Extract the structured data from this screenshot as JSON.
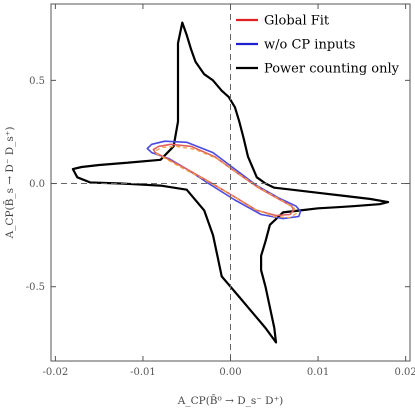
{
  "chart_data": {
    "type": "line",
    "title": "",
    "xlabel": "A_CP(B̄⁰ → D_s⁻ D⁺)",
    "ylabel": "A_CP(B̄_s → D⁻ D_s⁺)",
    "xlim": [
      -0.0205,
      0.0205
    ],
    "ylim": [
      -0.86,
      0.87
    ],
    "xticks": [
      -0.02,
      -0.01,
      0.0,
      0.01,
      0.02
    ],
    "xtick_labels": [
      "-0.02",
      "-0.01",
      "0.00",
      "0.01",
      "0.02"
    ],
    "yticks": [
      -0.5,
      0.0,
      0.5
    ],
    "ytick_labels": [
      "-0.5",
      "0.0",
      "0.5"
    ],
    "grid": false,
    "reference_lines": {
      "x": 0.0,
      "y": 0.0,
      "style": "dashed"
    },
    "legend": {
      "placement": "top-right",
      "entries": [
        {
          "label": "Global Fit",
          "color": "#e02020"
        },
        {
          "label": "w/o CP inputs",
          "color": "#2020d0"
        },
        {
          "label": "Power counting only",
          "color": "#000000"
        }
      ]
    },
    "series": [
      {
        "name": "Power counting only",
        "color": "#000000",
        "kind": "closed-contour",
        "points": [
          [
            -0.0055,
            0.78
          ],
          [
            -0.005,
            0.72
          ],
          [
            -0.0045,
            0.65
          ],
          [
            -0.004,
            0.59
          ],
          [
            -0.003,
            0.53
          ],
          [
            -0.002,
            0.5
          ],
          [
            -0.001,
            0.45
          ],
          [
            -0.0002,
            0.42
          ],
          [
            0.0005,
            0.37
          ],
          [
            0.001,
            0.3
          ],
          [
            0.0015,
            0.22
          ],
          [
            0.002,
            0.13
          ],
          [
            0.003,
            0.03
          ],
          [
            0.004,
            0.0
          ],
          [
            0.005,
            -0.02
          ],
          [
            0.007,
            -0.03
          ],
          [
            0.01,
            -0.045
          ],
          [
            0.013,
            -0.06
          ],
          [
            0.016,
            -0.075
          ],
          [
            0.018,
            -0.09
          ],
          [
            0.017,
            -0.1
          ],
          [
            0.014,
            -0.11
          ],
          [
            0.012,
            -0.115
          ],
          [
            0.01,
            -0.12
          ],
          [
            0.008,
            -0.13
          ],
          [
            0.006,
            -0.14
          ],
          [
            0.0045,
            -0.2
          ],
          [
            0.004,
            -0.28
          ],
          [
            0.0035,
            -0.35
          ],
          [
            0.0035,
            -0.42
          ],
          [
            0.004,
            -0.5
          ],
          [
            0.0045,
            -0.6
          ],
          [
            0.005,
            -0.7
          ],
          [
            0.0052,
            -0.77
          ],
          [
            0.004,
            -0.7
          ],
          [
            0.003,
            -0.65
          ],
          [
            0.002,
            -0.6
          ],
          [
            0.001,
            -0.55
          ],
          [
            0.0,
            -0.5
          ],
          [
            -0.001,
            -0.45
          ],
          [
            -0.0015,
            -0.35
          ],
          [
            -0.002,
            -0.25
          ],
          [
            -0.003,
            -0.13
          ],
          [
            -0.005,
            -0.03
          ],
          [
            -0.008,
            -0.01
          ],
          [
            -0.0125,
            0.0
          ],
          [
            -0.016,
            0.005
          ],
          [
            -0.0175,
            0.03
          ],
          [
            -0.018,
            0.07
          ],
          [
            -0.017,
            0.08
          ],
          [
            -0.015,
            0.09
          ],
          [
            -0.012,
            0.1
          ],
          [
            -0.008,
            0.115
          ],
          [
            -0.0065,
            0.18
          ],
          [
            -0.006,
            0.3
          ],
          [
            -0.006,
            0.42
          ],
          [
            -0.006,
            0.55
          ],
          [
            -0.006,
            0.68
          ],
          [
            -0.0055,
            0.78
          ]
        ]
      },
      {
        "name": "w/o CP inputs",
        "color": "#4a4ae0",
        "kind": "closed-contour",
        "points": [
          [
            -0.0095,
            0.17
          ],
          [
            -0.009,
            0.19
          ],
          [
            -0.0075,
            0.205
          ],
          [
            -0.005,
            0.2
          ],
          [
            -0.002,
            0.15
          ],
          [
            0.0005,
            0.07
          ],
          [
            0.003,
            -0.01
          ],
          [
            0.0055,
            -0.07
          ],
          [
            0.0075,
            -0.11
          ],
          [
            0.008,
            -0.135
          ],
          [
            0.0078,
            -0.16
          ],
          [
            0.006,
            -0.17
          ],
          [
            0.0035,
            -0.15
          ],
          [
            0.0005,
            -0.08
          ],
          [
            -0.0025,
            0.0
          ],
          [
            -0.005,
            0.07
          ],
          [
            -0.007,
            0.12
          ],
          [
            -0.009,
            0.15
          ],
          [
            -0.0095,
            0.17
          ]
        ]
      },
      {
        "name": "Global Fit",
        "color": "#e06060",
        "kind": "closed-contour",
        "points": [
          [
            -0.0088,
            0.165
          ],
          [
            -0.0082,
            0.18
          ],
          [
            -0.0068,
            0.19
          ],
          [
            -0.0045,
            0.18
          ],
          [
            -0.0018,
            0.13
          ],
          [
            0.0008,
            0.05
          ],
          [
            0.0032,
            -0.02
          ],
          [
            0.0055,
            -0.075
          ],
          [
            0.007,
            -0.11
          ],
          [
            0.0072,
            -0.13
          ],
          [
            0.0068,
            -0.15
          ],
          [
            0.0052,
            -0.155
          ],
          [
            0.003,
            -0.13
          ],
          [
            0.0003,
            -0.06
          ],
          [
            -0.0025,
            0.01
          ],
          [
            -0.005,
            0.07
          ],
          [
            -0.0072,
            0.12
          ],
          [
            -0.0086,
            0.15
          ],
          [
            -0.0088,
            0.165
          ]
        ]
      },
      {
        "name": "",
        "color": "#f0a040",
        "kind": "closed-contour-dashed",
        "points": [
          [
            -0.0085,
            0.16
          ],
          [
            -0.0078,
            0.175
          ],
          [
            -0.0062,
            0.18
          ],
          [
            -0.004,
            0.165
          ],
          [
            -0.0015,
            0.12
          ],
          [
            0.001,
            0.045
          ],
          [
            0.0035,
            -0.025
          ],
          [
            0.0058,
            -0.08
          ],
          [
            0.0073,
            -0.12
          ],
          [
            0.0075,
            -0.145
          ],
          [
            0.0068,
            -0.165
          ],
          [
            0.005,
            -0.16
          ],
          [
            0.0025,
            -0.12
          ],
          [
            -0.0003,
            -0.045
          ],
          [
            -0.003,
            0.02
          ],
          [
            -0.0055,
            0.075
          ],
          [
            -0.0074,
            0.12
          ],
          [
            -0.0085,
            0.145
          ],
          [
            -0.0085,
            0.16
          ]
        ]
      }
    ]
  }
}
